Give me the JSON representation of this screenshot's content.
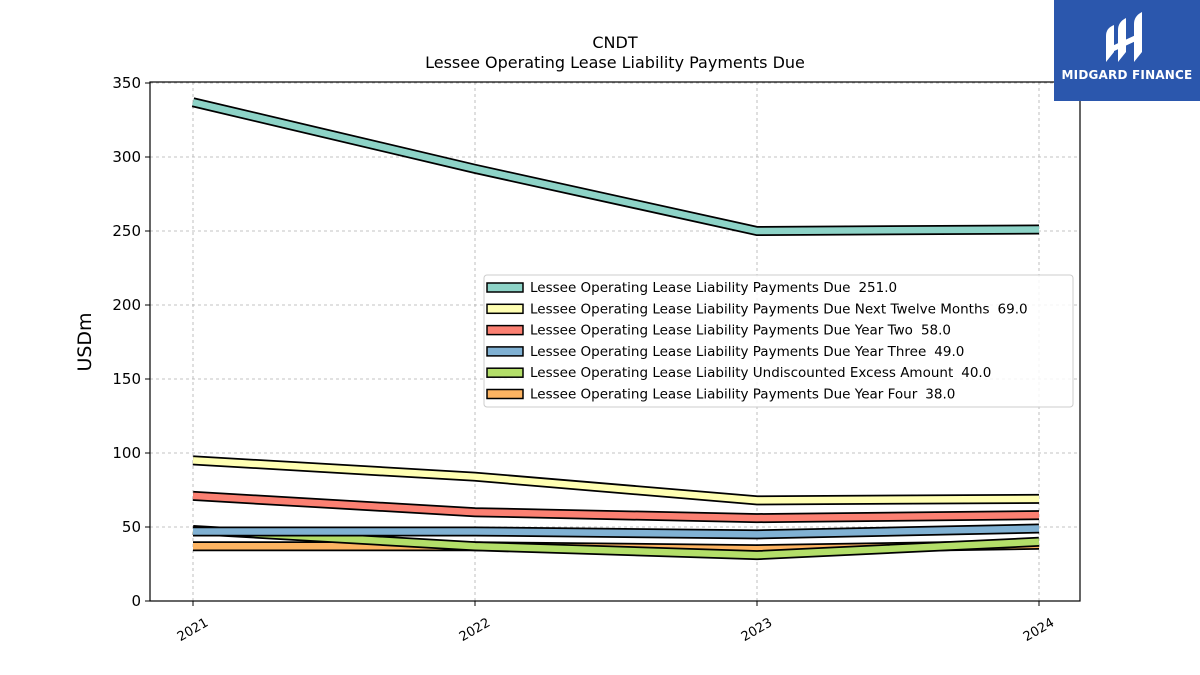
{
  "chart_data": {
    "type": "line",
    "title_line1": "CNDT",
    "title_line2": "Lessee Operating Lease Liability Payments Due",
    "xlabel": "",
    "ylabel": "USDm",
    "categories": [
      "2021",
      "2022",
      "2023",
      "2024"
    ],
    "ylim": [
      0,
      350
    ],
    "yticks": [
      "0",
      "50",
      "100",
      "150",
      "200",
      "250",
      "300",
      "350"
    ],
    "grid": true,
    "legend_position": "center-right",
    "series": [
      {
        "name": "Lessee Operating Lease Liability Payments Due",
        "latest": "251.0",
        "values": [
          337,
          292,
          250,
          251
        ],
        "color": "#8dd3c7"
      },
      {
        "name": "Lessee Operating Lease Liability Payments Due Next Twelve Months",
        "latest": "69.0",
        "values": [
          95,
          84,
          68,
          69
        ],
        "color": "#ffffb3"
      },
      {
        "name": "Lessee Operating Lease Liability Payments Due Year Two",
        "latest": "58.0",
        "values": [
          71,
          60,
          56,
          58
        ],
        "color": "#fb8072"
      },
      {
        "name": "Lessee Operating Lease Liability Payments Due Year Three",
        "latest": "49.0",
        "values": [
          47,
          47,
          45,
          49
        ],
        "color": "#80b1d3"
      },
      {
        "name": "Lessee Operating Lease Liability Undiscounted Excess Amount",
        "latest": "40.0",
        "values": [
          48,
          37,
          31,
          40
        ],
        "color": "#b3de69"
      },
      {
        "name": "Lessee Operating Lease Liability Payments Due Year Four",
        "latest": "38.0",
        "values": [
          37,
          37,
          35,
          38
        ],
        "color": "#fdb462"
      }
    ]
  },
  "logo": {
    "text": "MIDGARD FINANCE"
  }
}
